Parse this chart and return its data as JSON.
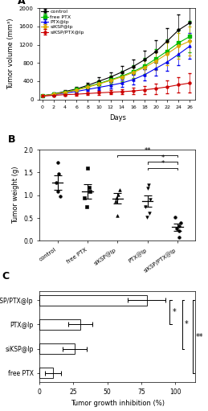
{
  "panel_A": {
    "days": [
      0,
      2,
      4,
      6,
      8,
      10,
      12,
      14,
      16,
      18,
      20,
      22,
      24,
      26
    ],
    "control_mean": [
      80,
      120,
      175,
      230,
      310,
      400,
      490,
      600,
      720,
      870,
      1050,
      1280,
      1520,
      1680
    ],
    "control_err": [
      15,
      25,
      35,
      45,
      60,
      80,
      100,
      130,
      160,
      200,
      240,
      290,
      340,
      380
    ],
    "freePTX_mean": [
      80,
      115,
      160,
      215,
      280,
      350,
      430,
      510,
      610,
      730,
      890,
      1060,
      1240,
      1380
    ],
    "freePTX_err": [
      15,
      22,
      30,
      40,
      55,
      70,
      90,
      115,
      145,
      175,
      210,
      250,
      295,
      340
    ],
    "PTXlp_mean": [
      75,
      105,
      140,
      175,
      220,
      265,
      310,
      360,
      435,
      540,
      680,
      820,
      990,
      1170
    ],
    "PTXlp_err": [
      12,
      18,
      25,
      32,
      40,
      55,
      65,
      80,
      100,
      130,
      165,
      200,
      240,
      280
    ],
    "siKSPlp_mean": [
      78,
      112,
      155,
      205,
      270,
      340,
      415,
      495,
      590,
      700,
      840,
      1000,
      1170,
      1280
    ],
    "siKSPlp_err": [
      14,
      20,
      28,
      38,
      52,
      65,
      85,
      105,
      135,
      165,
      200,
      240,
      280,
      320
    ],
    "siKSPPTXlp_mean": [
      75,
      90,
      105,
      115,
      130,
      145,
      158,
      170,
      185,
      210,
      240,
      275,
      320,
      360
    ],
    "siKSPPTXlp_err": [
      12,
      16,
      20,
      25,
      30,
      38,
      45,
      55,
      70,
      90,
      115,
      145,
      175,
      210
    ],
    "colors": {
      "control": "#000000",
      "freePTX": "#00bb00",
      "PTXlp": "#0000ee",
      "siKSPlp": "#ddaa00",
      "siKSPPTXlp": "#cc0000"
    },
    "ylabel": "Tumor volume (mm³)",
    "xlabel": "Days",
    "ylim": [
      0,
      2000
    ],
    "yticks": [
      0,
      400,
      800,
      1200,
      1600,
      2000
    ]
  },
  "panel_B": {
    "groups": [
      "control",
      "free PTX",
      "siKSP@lp",
      "PTX@lp",
      "siKSP/PTX@lp"
    ],
    "means": [
      1.28,
      1.08,
      0.93,
      0.87,
      0.3
    ],
    "errs": [
      0.16,
      0.16,
      0.12,
      0.13,
      0.08
    ],
    "data_points": {
      "control": [
        1.72,
        1.48,
        1.28,
        1.08,
        0.97
      ],
      "free PTX": [
        1.6,
        1.18,
        1.08,
        0.95,
        0.75
      ],
      "siKSP@lp": [
        1.12,
        1.02,
        0.95,
        0.88,
        0.55
      ],
      "PTX@lp": [
        1.22,
        1.15,
        0.9,
        0.75,
        0.6,
        0.52
      ],
      "siKSP/PTX@lp": [
        0.52,
        0.4,
        0.32,
        0.28,
        0.22,
        0.08
      ]
    },
    "markers": [
      "o",
      "s",
      "^",
      "v",
      "o"
    ],
    "ylabel": "Tumor weight (g)",
    "ylim": [
      0,
      2.0
    ],
    "yticks": [
      0.0,
      0.5,
      1.0,
      1.5,
      2.0
    ],
    "sig_lines": [
      {
        "x1": 2,
        "x2": 4,
        "y": 1.88,
        "label": "**"
      },
      {
        "x1": 3,
        "x2": 4,
        "y": 1.75,
        "label": "*"
      },
      {
        "x1": 3,
        "x2": 4,
        "y": 1.62,
        "label": "*"
      }
    ]
  },
  "panel_C": {
    "groups": [
      "siKSP/PTX@lp",
      "PTX@lp",
      "siKSP@lp",
      "free PTX"
    ],
    "means": [
      79,
      30,
      26,
      10
    ],
    "errs": [
      14,
      9,
      9,
      6
    ],
    "xlabel": "Tumor growth inhibition (%)",
    "xlim": [
      0,
      115
    ],
    "xticks": [
      0,
      25,
      50,
      75,
      100
    ]
  }
}
